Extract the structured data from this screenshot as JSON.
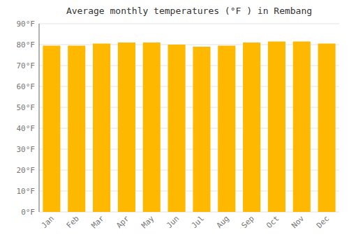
{
  "chart_data": {
    "type": "bar",
    "title": "Average monthly temperatures (°F ) in Rembang",
    "categories": [
      "Jan",
      "Feb",
      "Mar",
      "Apr",
      "May",
      "Jun",
      "Jul",
      "Aug",
      "Sep",
      "Oct",
      "Nov",
      "Dec"
    ],
    "values": [
      79.5,
      79.5,
      80.5,
      81.0,
      81.0,
      80.0,
      79.0,
      79.5,
      81.0,
      81.5,
      81.5,
      80.5
    ],
    "color": "#FFB800",
    "ylim": [
      0,
      90
    ],
    "yticks": [
      {
        "value": 0,
        "label": "0°F"
      },
      {
        "value": 10,
        "label": "10°F"
      },
      {
        "value": 20,
        "label": "20°F"
      },
      {
        "value": 30,
        "label": "30°F"
      },
      {
        "value": 40,
        "label": "40°F"
      },
      {
        "value": 50,
        "label": "50°F"
      },
      {
        "value": 60,
        "label": "60°F"
      },
      {
        "value": 70,
        "label": "70°F"
      },
      {
        "value": 80,
        "label": "80°F"
      },
      {
        "value": 90,
        "label": "90°F"
      }
    ],
    "grid": true
  }
}
